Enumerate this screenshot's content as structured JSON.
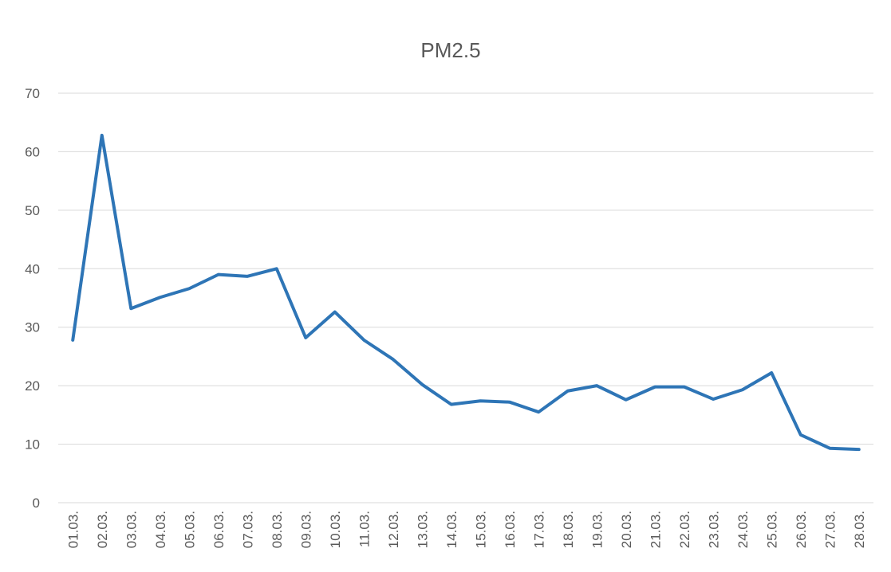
{
  "chart_data": {
    "type": "line",
    "title": "PM2.5",
    "categories": [
      "01.03.",
      "02.03.",
      "03.03.",
      "04.03.",
      "05.03.",
      "06.03.",
      "07.03.",
      "08.03.",
      "09.03.",
      "10.03.",
      "11.03.",
      "12.03.",
      "13.03.",
      "14.03.",
      "15.03.",
      "16.03.",
      "17.03.",
      "18.03.",
      "19.03.",
      "20.03.",
      "21.03.",
      "22.03.",
      "23.03.",
      "24.03.",
      "25.03.",
      "26.03.",
      "27.03.",
      "28.03."
    ],
    "series": [
      {
        "name": "PM2.5",
        "color": "#2e75b6",
        "values": [
          27.8,
          62.8,
          33.2,
          35.1,
          36.6,
          39,
          38.7,
          40,
          28.2,
          32.6,
          27.8,
          24.5,
          20.2,
          16.8,
          17.4,
          17.2,
          15.5,
          19.1,
          20,
          17.6,
          19.8,
          19.8,
          17.7,
          19.3,
          22.2,
          11.6,
          9.3,
          9.1
        ]
      }
    ],
    "ylim": [
      0,
      70
    ],
    "yticks": [
      0,
      10,
      20,
      30,
      40,
      50,
      60,
      70
    ],
    "grid": true
  }
}
